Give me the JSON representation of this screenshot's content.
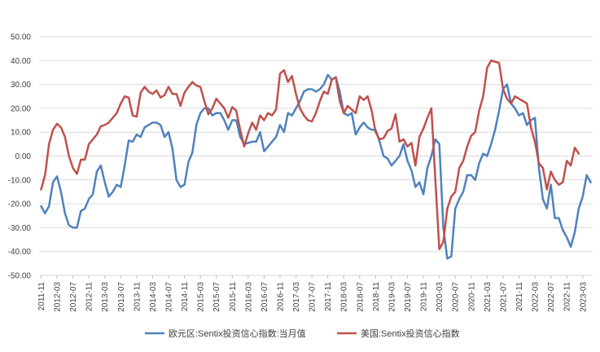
{
  "chart_data": {
    "type": "line",
    "title": "",
    "xlabel": "",
    "ylabel": "",
    "ylim": [
      -50,
      50
    ],
    "y_ticks": [
      "50.00",
      "40.00",
      "30.00",
      "20.00",
      "10.00",
      "0.00",
      "-10.00",
      "-20.00",
      "-30.00",
      "-40.00",
      "-50.00"
    ],
    "y_tick_values": [
      50,
      40,
      30,
      20,
      10,
      0,
      -10,
      -20,
      -30,
      -40,
      -50
    ],
    "x_range": [
      "2011-11",
      "2023-03"
    ],
    "x_ticks": [
      "2011-11",
      "2012-03",
      "2012-07",
      "2012-11",
      "2013-03",
      "2013-07",
      "2013-11",
      "2014-03",
      "2014-07",
      "2014-11",
      "2015-03",
      "2015-07",
      "2015-11",
      "2016-03",
      "2016-07",
      "2016-11",
      "2017-03",
      "2017-07",
      "2017-11",
      "2018-03",
      "2018-07",
      "2018-11",
      "2019-03",
      "2019-07",
      "2019-11",
      "2020-03",
      "2020-07",
      "2020-11",
      "2021-03",
      "2021-07",
      "2021-11",
      "2022-03",
      "2022-07",
      "2022-11",
      "2023-03"
    ],
    "grid": "horizontal",
    "legend_position": "bottom",
    "series": [
      {
        "name": "欧元区:Sentix投资信心指数:当月值",
        "color": "#4f81bd",
        "values": [
          -21,
          -24,
          -21,
          -11,
          -8.5,
          -15,
          -24,
          -29,
          -30,
          -30,
          -23,
          -22,
          -18,
          -16,
          -6.5,
          -4,
          -11,
          -17,
          -15,
          -12,
          -13,
          -4,
          6.5,
          6,
          9,
          8,
          12,
          13,
          14,
          14,
          13,
          8,
          10,
          3,
          -10,
          -13,
          -12,
          -2.5,
          1.5,
          13,
          18,
          20,
          20,
          17,
          18,
          18,
          15,
          11,
          15,
          15,
          8,
          5,
          5.5,
          6,
          6,
          10,
          2,
          4,
          6,
          8,
          13,
          10,
          18,
          17,
          20,
          23,
          27,
          28,
          28,
          27,
          28,
          30,
          34,
          32,
          33,
          27,
          18,
          17,
          18,
          9,
          12,
          14,
          12,
          11,
          11,
          6,
          0,
          -1,
          -4,
          -2,
          0,
          5,
          -2,
          -6,
          -13,
          -11,
          -16,
          -5,
          0,
          7,
          5,
          -30,
          -43,
          -42,
          -22,
          -18,
          -15,
          -8,
          -8,
          -10,
          -3,
          1,
          0,
          5,
          11,
          19,
          28,
          30,
          22,
          20,
          17,
          18,
          13,
          15,
          16,
          -5,
          -18,
          -22,
          -12,
          -26,
          -26,
          -31,
          -34,
          -38,
          -32,
          -22,
          -17,
          -8,
          -11
        ]
      },
      {
        "name": "美国:Sentix投资信心指数",
        "color": "#c0504d",
        "values": [
          -14,
          -8,
          5,
          11,
          13.5,
          12,
          8,
          0,
          -5,
          -7.5,
          -1.5,
          -1.5,
          5,
          7,
          9,
          12.5,
          13,
          14,
          16,
          18,
          22,
          25,
          24.5,
          17,
          16.5,
          26.5,
          29,
          27,
          26,
          27.5,
          24.5,
          25.5,
          29,
          26,
          26,
          21,
          26.5,
          29,
          31,
          29.5,
          29,
          23,
          17.5,
          20,
          24,
          22,
          20,
          16,
          20.5,
          19,
          11,
          4,
          9.5,
          14,
          11,
          17,
          15,
          18,
          17,
          19.5,
          34.5,
          36,
          31,
          33.5,
          26,
          20,
          17,
          15,
          14.5,
          18,
          23,
          27,
          26,
          32,
          33,
          23,
          18,
          21,
          19.5,
          18,
          25,
          23.5,
          25,
          19,
          10,
          7,
          7.5,
          10.5,
          11.5,
          17.5,
          6,
          7,
          4,
          5.5,
          -4,
          8,
          11.5,
          16,
          20,
          -10,
          -39,
          -36,
          -22,
          -17,
          -15,
          -5,
          -2,
          4,
          8.5,
          10,
          19,
          25,
          37,
          40,
          39.5,
          39,
          28,
          24,
          22,
          25,
          24,
          23,
          22,
          12,
          6,
          -3,
          -5,
          -14,
          -6.5,
          -10,
          -12,
          -11,
          -2,
          -4,
          3.5,
          1
        ]
      }
    ]
  }
}
